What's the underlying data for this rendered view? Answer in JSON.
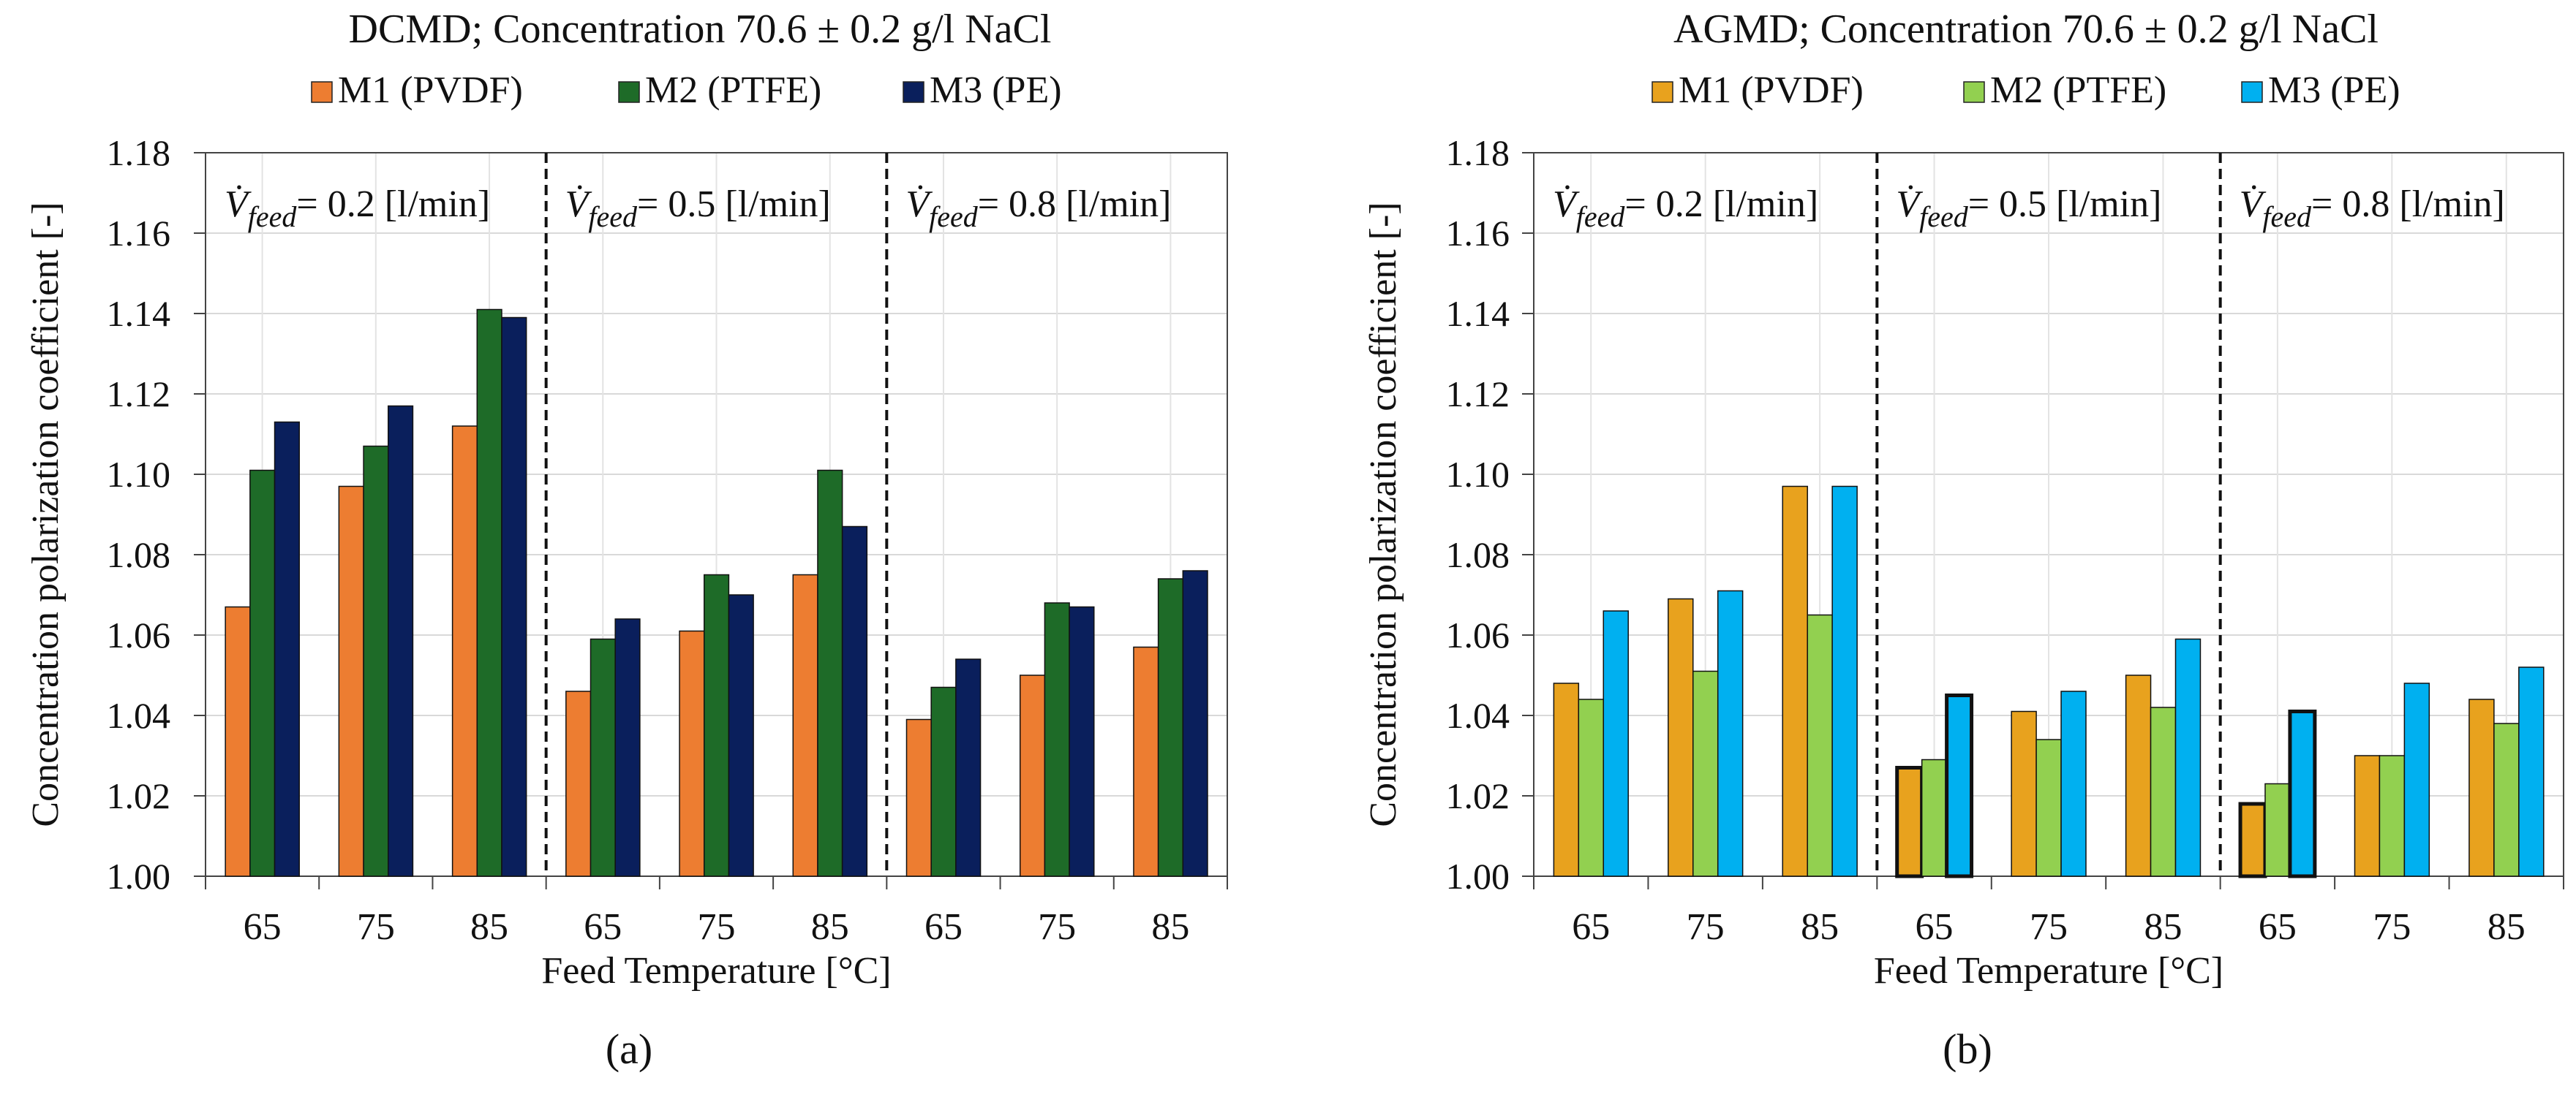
{
  "chart_data": [
    {
      "type": "bar",
      "panel_label": "(a)",
      "title": "DCMD; Concentration 70.6 ± 0.2 g/l NaCl",
      "xlabel": "Feed Temperature [°C]",
      "ylabel": "Concentration polarization coefficient [-]",
      "ylim": [
        1.0,
        1.18
      ],
      "yticks": [
        "1.00",
        "1.02",
        "1.04",
        "1.06",
        "1.08",
        "1.10",
        "1.12",
        "1.14",
        "1.16",
        "1.18"
      ],
      "grid": true,
      "legend_position": "top-center",
      "categories": [
        "65",
        "75",
        "85",
        "65",
        "75",
        "85",
        "65",
        "75",
        "85"
      ],
      "groups": [
        {
          "symbol": "V̇",
          "subscript": "feed",
          "text": "= 0.2 [l/min]"
        },
        {
          "symbol": "V̇",
          "subscript": "feed",
          "text": "= 0.5 [l/min]"
        },
        {
          "symbol": "V̇",
          "subscript": "feed",
          "text": "= 0.8 [l/min]"
        }
      ],
      "series": [
        {
          "name": "M1 (PVDF)",
          "color": "#ED7D31",
          "values": [
            1.067,
            1.097,
            1.112,
            1.046,
            1.061,
            1.075,
            1.039,
            1.05,
            1.057
          ]
        },
        {
          "name": "M2 (PTFE)",
          "color": "#1E6B28",
          "values": [
            1.101,
            1.107,
            1.141,
            1.059,
            1.075,
            1.101,
            1.047,
            1.068,
            1.074
          ]
        },
        {
          "name": "M3 (PE)",
          "color": "#0A1F5C",
          "values": [
            1.113,
            1.117,
            1.139,
            1.064,
            1.07,
            1.087,
            1.054,
            1.067,
            1.076
          ]
        }
      ],
      "highlighted": []
    },
    {
      "type": "bar",
      "panel_label": "(b)",
      "title": "AGMD; Concentration 70.6 ± 0.2 g/l NaCl",
      "xlabel": "Feed Temperature [°C]",
      "ylabel": "Concentration polarization coefficient [-]",
      "ylim": [
        1.0,
        1.18
      ],
      "yticks": [
        "1.00",
        "1.02",
        "1.04",
        "1.06",
        "1.08",
        "1.10",
        "1.12",
        "1.14",
        "1.16",
        "1.18"
      ],
      "grid": true,
      "legend_position": "top-center",
      "categories": [
        "65",
        "75",
        "85",
        "65",
        "75",
        "85",
        "65",
        "75",
        "85"
      ],
      "groups": [
        {
          "symbol": "V̇",
          "subscript": "feed",
          "text": "= 0.2 [l/min]"
        },
        {
          "symbol": "V̇",
          "subscript": "feed",
          "text": "= 0.5 [l/min]"
        },
        {
          "symbol": "V̇",
          "subscript": "feed",
          "text": "= 0.8 [l/min]"
        }
      ],
      "series": [
        {
          "name": "M1 (PVDF)",
          "color": "#E8A21E",
          "values": [
            1.048,
            1.069,
            1.097,
            1.027,
            1.041,
            1.05,
            1.018,
            1.03,
            1.044
          ]
        },
        {
          "name": "M2 (PTFE)",
          "color": "#92D050",
          "values": [
            1.044,
            1.051,
            1.065,
            1.029,
            1.034,
            1.042,
            1.023,
            1.03,
            1.038
          ]
        },
        {
          "name": "M3 (PE)",
          "color": "#00B0F0",
          "values": [
            1.066,
            1.071,
            1.097,
            1.045,
            1.046,
            1.059,
            1.041,
            1.048,
            1.052
          ]
        }
      ],
      "highlighted": [
        [
          0,
          3
        ],
        [
          2,
          3
        ],
        [
          0,
          6
        ],
        [
          2,
          6
        ]
      ]
    }
  ]
}
